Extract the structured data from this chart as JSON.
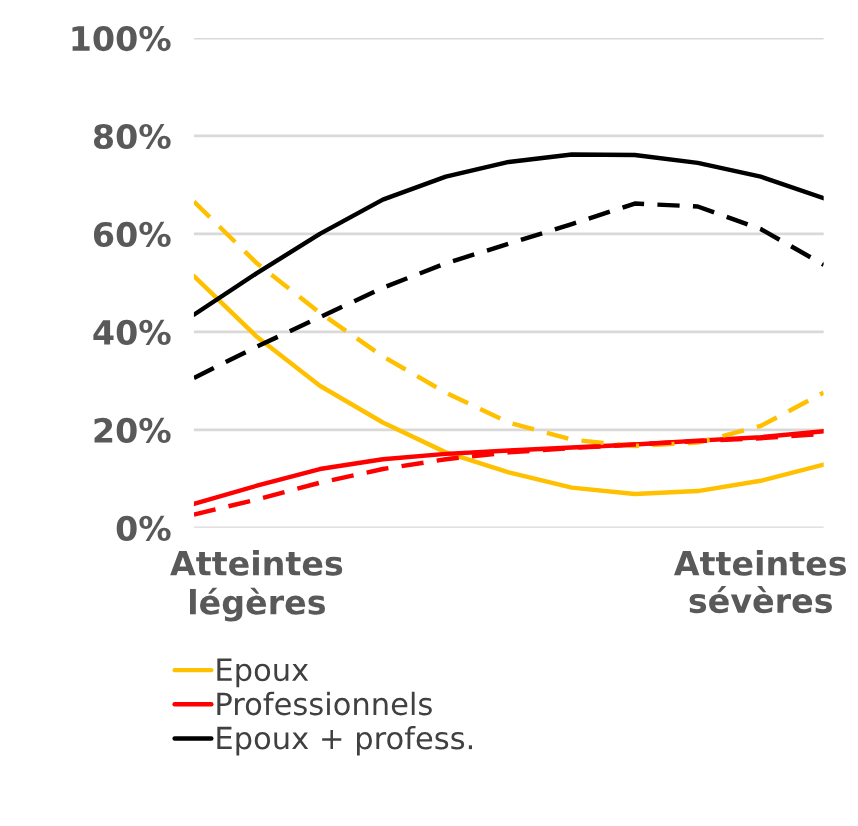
{
  "chart_data": {
    "type": "line",
    "categories": [
      null,
      "Atteintes\nlégères",
      null,
      null,
      null,
      null,
      null,
      null,
      null,
      "Atteintes\nsévères",
      null
    ],
    "ylim": [
      0,
      100
    ],
    "yticks": [
      {
        "value": 0,
        "label": "0%"
      },
      {
        "value": 20,
        "label": "20%"
      },
      {
        "value": 40,
        "label": "40%"
      },
      {
        "value": 60,
        "label": "60%"
      },
      {
        "value": 80,
        "label": "80%"
      },
      {
        "value": 100,
        "label": "100%"
      }
    ],
    "grid": "y",
    "legend": "bottom",
    "marker": "none",
    "series": [
      {
        "name": "Epoux",
        "color": "#ffc000",
        "line_style": "solid",
        "values": [
          51.4,
          39,
          29,
          21.5,
          15.4,
          11.3,
          8.2,
          6.9,
          7.5,
          9.6,
          12.9
        ]
      },
      {
        "name": "Professionnels",
        "color": "#ff0000",
        "line_style": "solid",
        "values": [
          4.9,
          8.6,
          12,
          14,
          15.1,
          15.8,
          16.4,
          17,
          17.8,
          18.5,
          19.7
        ]
      },
      {
        "name": "Epoux + profess.",
        "color": "#000000",
        "line_style": "solid",
        "values": [
          43.5,
          52,
          60,
          67,
          71.7,
          74.7,
          76.2,
          76.1,
          74.5,
          71.7,
          67.3
        ]
      },
      {
        "color": "#ffc000",
        "line_style": "dashed",
        "values": [
          66.6,
          54,
          43.9,
          35,
          27.6,
          21.5,
          18,
          16.7,
          17.4,
          20.8,
          27.6
        ]
      },
      {
        "color": "#ff0000",
        "line_style": "dashed",
        "values": [
          2.7,
          5.8,
          9.2,
          12,
          14,
          15.4,
          16.3,
          17,
          17.7,
          18.3,
          19.2
        ]
      },
      {
        "color": "#000000",
        "line_style": "dashed",
        "values": [
          30.6,
          37,
          43,
          49,
          54,
          58,
          62,
          66.2,
          65.6,
          61,
          53.7
        ]
      }
    ]
  }
}
